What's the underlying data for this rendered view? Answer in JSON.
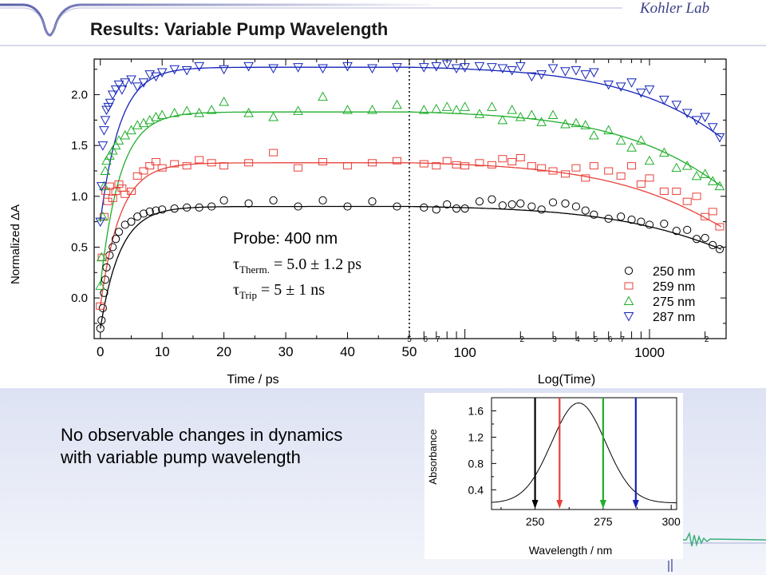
{
  "slide": {
    "title": "Results: Variable Pump Wavelength",
    "brand": "Kohler Lab",
    "body_text": "No observable changes in dynamics with variable pump wavelength"
  },
  "colors": {
    "series_250": "#000000",
    "series_259": "#e8413a",
    "series_275": "#1fae2a",
    "series_287": "#1323b8",
    "header_decor": "#3a3f86"
  },
  "chart_data": [
    {
      "type": "scatter",
      "ylabel": "Normalized ΔA",
      "xlabel_linear": "Time / ps",
      "xlabel_log": "Log(Time)",
      "y_ticks": [
        "0.0",
        "0.5",
        "1.0",
        "1.5",
        "2.0"
      ],
      "x_ticks_linear": [
        "0",
        "10",
        "20",
        "30",
        "40",
        "50"
      ],
      "x_ticks_log_major": [
        "100",
        "1000"
      ],
      "x_ticks_log_minor_1": [
        "5",
        "6",
        "7"
      ],
      "x_ticks_log_minor_2": [
        "2",
        "3",
        "4",
        "5",
        "6",
        "7"
      ],
      "x_ticks_log_minor_3": [
        "2"
      ],
      "ylim": [
        -0.4,
        2.35
      ],
      "xlim_linear": [
        -1,
        50
      ],
      "xlim_log": [
        50,
        2600
      ],
      "annotation": {
        "probe": "Probe: 400 nm",
        "tau_therm_sym": "τ",
        "tau_therm_sub": "Therm.",
        "tau_therm_val": " = 5.0 ± 1.2 ps",
        "tau_trip_sym": "τ",
        "tau_trip_sub": "Trip",
        "tau_trip_val": " = 5 ± 1 ns"
      },
      "legend_position": "bottom-right",
      "series": [
        {
          "name": "250 nm",
          "marker": "circle",
          "color": "#000000",
          "plateau": 0.9,
          "lin_t": [
            0.0,
            0.2,
            0.4,
            0.6,
            0.8,
            1.0,
            1.5,
            2.0,
            2.5,
            3.0,
            4.0,
            5.0,
            6.0,
            7.0,
            8.0,
            9.0,
            10.0,
            12.0,
            14.0,
            16.0,
            18.0,
            20.0,
            24.0,
            28.0,
            32.0,
            36.0,
            40.0,
            44.0,
            48.0
          ],
          "lin_y": [
            -0.3,
            -0.22,
            -0.1,
            0.05,
            0.18,
            0.3,
            0.42,
            0.5,
            0.58,
            0.65,
            0.72,
            0.75,
            0.8,
            0.83,
            0.85,
            0.86,
            0.87,
            0.88,
            0.89,
            0.89,
            0.9,
            0.96,
            0.93,
            0.96,
            0.9,
            0.96,
            0.9,
            0.95,
            0.9
          ],
          "log_t": [
            60,
            70,
            80,
            90,
            100,
            120,
            140,
            160,
            180,
            200,
            230,
            260,
            300,
            350,
            400,
            450,
            500,
            600,
            700,
            800,
            900,
            1000,
            1200,
            1400,
            1600,
            1800,
            2000,
            2200,
            2400
          ],
          "log_y": [
            0.89,
            0.87,
            0.92,
            0.88,
            0.88,
            0.95,
            0.97,
            0.91,
            0.92,
            0.93,
            0.9,
            0.87,
            0.94,
            0.93,
            0.9,
            0.86,
            0.82,
            0.78,
            0.8,
            0.77,
            0.75,
            0.72,
            0.73,
            0.66,
            0.67,
            0.58,
            0.59,
            0.52,
            0.48
          ]
        },
        {
          "name": "259 nm",
          "marker": "square",
          "color": "#e8413a",
          "plateau": 1.33,
          "lin_t": [
            0.0,
            0.3,
            0.6,
            0.9,
            1.2,
            1.5,
            2.0,
            2.5,
            3.0,
            3.5,
            4.0,
            5.0,
            6.0,
            7.0,
            8.0,
            9.0,
            10.0,
            12.0,
            14.0,
            16.0,
            18.0,
            20.0,
            24.0,
            28.0,
            32.0,
            36.0,
            40.0,
            44.0,
            48.0
          ],
          "lin_y": [
            -0.08,
            0.4,
            0.8,
            1.05,
            0.95,
            1.1,
            0.98,
            1.05,
            1.12,
            1.08,
            1.02,
            1.05,
            1.2,
            1.25,
            1.3,
            1.34,
            1.28,
            1.32,
            1.3,
            1.36,
            1.33,
            1.3,
            1.33,
            1.43,
            1.28,
            1.34,
            1.3,
            1.33,
            1.35
          ],
          "log_t": [
            60,
            70,
            80,
            90,
            100,
            120,
            140,
            160,
            180,
            200,
            230,
            260,
            300,
            350,
            400,
            450,
            500,
            600,
            700,
            800,
            900,
            1000,
            1200,
            1400,
            1600,
            1800,
            2000,
            2200,
            2400
          ],
          "log_y": [
            1.32,
            1.3,
            1.35,
            1.31,
            1.3,
            1.33,
            1.31,
            1.37,
            1.34,
            1.38,
            1.3,
            1.28,
            1.25,
            1.22,
            1.28,
            1.18,
            1.3,
            1.25,
            1.2,
            1.3,
            1.12,
            1.18,
            1.05,
            1.05,
            0.95,
            1.0,
            0.8,
            0.85,
            0.7
          ]
        },
        {
          "name": "275 nm",
          "marker": "triangle",
          "color": "#1fae2a",
          "plateau": 1.83,
          "lin_t": [
            0.0,
            0.2,
            0.4,
            0.6,
            0.8,
            1.0,
            1.5,
            2.0,
            2.5,
            3.0,
            4.0,
            5.0,
            6.0,
            7.0,
            8.0,
            9.0,
            10.0,
            12.0,
            14.0,
            16.0,
            18.0,
            20.0,
            24.0,
            28.0,
            32.0,
            36.0,
            40.0,
            44.0,
            48.0
          ],
          "lin_y": [
            0.12,
            0.4,
            0.8,
            1.1,
            1.25,
            1.35,
            1.4,
            1.45,
            1.5,
            1.55,
            1.6,
            1.65,
            1.7,
            1.72,
            1.75,
            1.78,
            1.8,
            1.82,
            1.84,
            1.82,
            1.85,
            1.93,
            1.82,
            1.78,
            1.84,
            1.98,
            1.85,
            1.85,
            1.9
          ],
          "log_t": [
            60,
            70,
            80,
            90,
            100,
            120,
            140,
            160,
            180,
            200,
            230,
            260,
            300,
            350,
            400,
            450,
            500,
            600,
            700,
            800,
            900,
            1000,
            1200,
            1400,
            1600,
            1800,
            2000,
            2200,
            2400
          ],
          "log_y": [
            1.85,
            1.86,
            1.88,
            1.85,
            1.88,
            1.81,
            1.88,
            1.75,
            1.85,
            1.78,
            1.8,
            1.73,
            1.8,
            1.71,
            1.72,
            1.7,
            1.6,
            1.65,
            1.55,
            1.48,
            1.55,
            1.35,
            1.43,
            1.28,
            1.3,
            1.2,
            1.22,
            1.15,
            1.1
          ]
        },
        {
          "name": "287 nm",
          "marker": "triangle-down",
          "color": "#1323b8",
          "plateau": 2.27,
          "lin_t": [
            0.0,
            0.2,
            0.4,
            0.6,
            0.8,
            1.0,
            1.3,
            1.6,
            2.0,
            2.5,
            3.0,
            3.5,
            4.0,
            5.0,
            6.0,
            7.0,
            8.0,
            9.0,
            10.0,
            12.0,
            14.0,
            16.0,
            20.0,
            24.0,
            28.0,
            32.0,
            36.0,
            40.0,
            44.0,
            48.0
          ],
          "lin_y": [
            0.75,
            1.1,
            1.5,
            1.65,
            1.75,
            1.85,
            1.88,
            1.92,
            2.0,
            2.05,
            2.1,
            2.05,
            2.12,
            2.15,
            2.08,
            2.12,
            2.2,
            2.18,
            2.22,
            2.25,
            2.24,
            2.28,
            2.25,
            2.28,
            2.26,
            2.27,
            2.26,
            2.28,
            2.26,
            2.27
          ],
          "log_t": [
            60,
            70,
            80,
            90,
            100,
            120,
            140,
            160,
            180,
            200,
            230,
            260,
            300,
            350,
            400,
            450,
            500,
            600,
            700,
            800,
            900,
            1000,
            1200,
            1400,
            1600,
            1800,
            2000,
            2200,
            2400
          ],
          "log_y": [
            2.27,
            2.28,
            2.3,
            2.26,
            2.27,
            2.28,
            2.27,
            2.26,
            2.24,
            2.28,
            2.18,
            2.2,
            2.26,
            2.23,
            2.24,
            2.2,
            2.22,
            2.1,
            2.08,
            2.12,
            2.02,
            2.05,
            1.95,
            1.9,
            1.82,
            1.75,
            1.78,
            1.68,
            1.58
          ]
        }
      ]
    },
    {
      "type": "line",
      "xlabel": "Wavelength / nm",
      "ylabel": "Absorbance",
      "x_ticks": [
        "250",
        "275",
        "300"
      ],
      "y_ticks": [
        "0.4",
        "0.8",
        "1.2",
        "1.6"
      ],
      "xlim": [
        234,
        302
      ],
      "ylim": [
        0.1,
        1.8
      ],
      "spectrum": {
        "peak_nm": 266,
        "peak_abs": 1.72,
        "width_nm": 14,
        "baseline": 0.2
      },
      "pump_arrows": [
        {
          "nm": 250,
          "color": "#000000"
        },
        {
          "nm": 259,
          "color": "#e8413a"
        },
        {
          "nm": 275,
          "color": "#1fae2a"
        },
        {
          "nm": 287,
          "color": "#1323b8"
        }
      ]
    }
  ]
}
